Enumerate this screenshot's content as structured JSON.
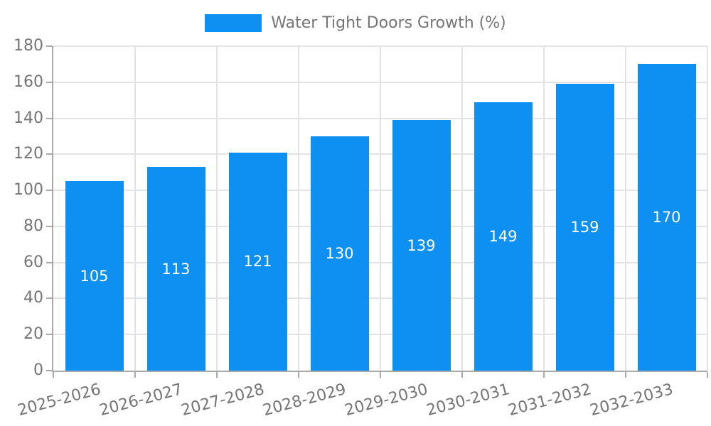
{
  "chart_data": {
    "type": "bar",
    "title": "Water Tight Doors Growth (%)",
    "legend_entries": [
      "Water Tight Doors Growth (%)"
    ],
    "legend_position": "top",
    "categories": [
      "2025-2026",
      "2026-2027",
      "2027-2028",
      "2028-2029",
      "2029-2030",
      "2030-2031",
      "2031-2032",
      "2032-2033"
    ],
    "series": [
      {
        "name": "Water Tight Doors Growth (%)",
        "values": [
          105,
          113,
          121,
          130,
          139,
          149,
          159,
          170
        ]
      }
    ],
    "bar_labels": [
      "105",
      "113",
      "121",
      "130",
      "139",
      "149",
      "159",
      "170"
    ],
    "xlabel": "",
    "ylabel": "",
    "ylim": [
      0,
      180
    ],
    "ytick_step": 20,
    "ytick_labels": [
      "0",
      "20",
      "40",
      "60",
      "80",
      "100",
      "120",
      "140",
      "160",
      "180"
    ],
    "grid": true,
    "colors": {
      "bar": "#0d90f2",
      "bar_value_text": "#ffffff",
      "axis_text": "#757575",
      "axis_line": "#a9a9a9",
      "gridline": "#e3e3e3",
      "background": "#ffffff"
    }
  }
}
